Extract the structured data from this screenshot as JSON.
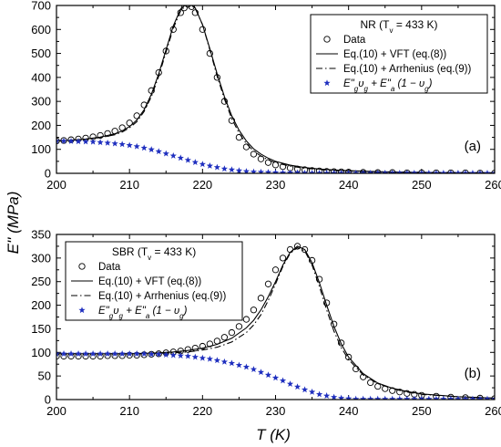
{
  "figure": {
    "xlabel": "T (K)",
    "ylabel": "E'' (MPa)"
  },
  "chart_data": [
    {
      "type": "line",
      "panel": "top",
      "tag": "(a)",
      "legend_title": "NR (T",
      "legend_title_sub": "v",
      "legend_title_rest": " = 433  K)",
      "legend_placement": "top-right",
      "xlim": [
        200,
        260
      ],
      "ylim": [
        0,
        700
      ],
      "xticks": [
        200,
        210,
        220,
        230,
        240,
        250,
        260
      ],
      "yticks": [
        0,
        100,
        200,
        300,
        400,
        500,
        600,
        700
      ],
      "series": [
        {
          "name": "Data",
          "style": "open-circles",
          "color": "#000000",
          "x": [
            200,
            201,
            202,
            203,
            204,
            205,
            206,
            207,
            208,
            209,
            210,
            211,
            212,
            213,
            214,
            215,
            216,
            217,
            217.5,
            218,
            218.5,
            219,
            220,
            221,
            222,
            223,
            224,
            225,
            226,
            227,
            228,
            229,
            230,
            231,
            232,
            233,
            234,
            235,
            236,
            237,
            238,
            239,
            240,
            242,
            244,
            246,
            248,
            250,
            252,
            254,
            256,
            258,
            260
          ],
          "y": [
            135,
            137,
            140,
            143,
            147,
            152,
            158,
            166,
            176,
            190,
            210,
            240,
            285,
            345,
            420,
            510,
            600,
            670,
            690,
            705,
            695,
            670,
            600,
            500,
            400,
            300,
            220,
            150,
            110,
            80,
            60,
            45,
            35,
            28,
            22,
            18,
            15,
            12,
            10,
            8,
            7,
            6,
            5,
            4,
            3,
            3,
            2,
            2,
            2,
            2,
            2,
            1,
            1
          ]
        },
        {
          "name": "Eq.(10) + VFT (eq.(8))",
          "style": "solid",
          "color": "#000000",
          "x": [
            200,
            202,
            204,
            206,
            208,
            209,
            210,
            211,
            212,
            213,
            214,
            215,
            216,
            217,
            218,
            219,
            220,
            221,
            222,
            223,
            224,
            225,
            226,
            227,
            228,
            229,
            230,
            232,
            234,
            236,
            238,
            240,
            245,
            250,
            255,
            260
          ],
          "y": [
            135,
            138,
            143,
            151,
            165,
            177,
            195,
            222,
            265,
            330,
            415,
            515,
            615,
            685,
            712,
            690,
            620,
            520,
            415,
            320,
            240,
            180,
            135,
            102,
            80,
            63,
            50,
            34,
            24,
            18,
            14,
            11,
            6,
            4,
            3,
            2
          ]
        },
        {
          "name": "Eq.(10) + Arrhenius (eq.(9))",
          "style": "dash-dot",
          "color": "#000000",
          "x": [
            200,
            202,
            204,
            206,
            208,
            209,
            210,
            211,
            212,
            213,
            214,
            215,
            216,
            217,
            218,
            219,
            220,
            221,
            222,
            223,
            224,
            225,
            226,
            227,
            228,
            229,
            230,
            232,
            234,
            236,
            238,
            240,
            245,
            250,
            255,
            260
          ],
          "y": [
            135,
            138,
            142,
            149,
            161,
            172,
            190,
            215,
            258,
            320,
            405,
            505,
            605,
            678,
            708,
            688,
            620,
            515,
            405,
            310,
            228,
            168,
            124,
            93,
            72,
            56,
            44,
            30,
            21,
            16,
            12,
            10,
            6,
            4,
            3,
            2
          ]
        },
        {
          "name": "E\"gυg + E\"a (1 − υg)",
          "style": "blue-stars",
          "color": "#1f2fbf",
          "x": [
            200,
            201,
            202,
            203,
            204,
            205,
            206,
            207,
            208,
            209,
            210,
            211,
            212,
            213,
            214,
            215,
            216,
            217,
            218,
            219,
            220,
            221,
            222,
            223,
            224,
            225,
            226,
            227,
            228,
            229,
            230,
            231,
            232,
            233,
            234,
            235,
            236,
            237,
            238,
            239,
            240,
            241,
            242,
            243,
            244,
            245,
            246,
            247,
            248,
            249,
            250,
            251,
            252,
            253,
            254,
            255,
            256,
            257,
            258,
            259,
            260
          ],
          "y": [
            135,
            135,
            134,
            133,
            132,
            131,
            129,
            127,
            124,
            121,
            117,
            112,
            106,
            99,
            91,
            82,
            73,
            64,
            55,
            46,
            38,
            31,
            25,
            19,
            15,
            11,
            8,
            6,
            5,
            4,
            3,
            2,
            2,
            2,
            1,
            1,
            1,
            1,
            1,
            1,
            1,
            1,
            1,
            1,
            1,
            1,
            1,
            1,
            1,
            1,
            1,
            1,
            1,
            1,
            1,
            1,
            1,
            1,
            1,
            1,
            1
          ]
        }
      ]
    },
    {
      "type": "line",
      "panel": "bottom",
      "tag": "(b)",
      "legend_title": "SBR  (T",
      "legend_title_sub": "v",
      "legend_title_rest": " = 433 K)",
      "legend_placement": "top-left",
      "xlim": [
        200,
        260
      ],
      "ylim": [
        0,
        350
      ],
      "xticks": [
        200,
        210,
        220,
        230,
        240,
        250,
        260
      ],
      "yticks": [
        0,
        50,
        100,
        150,
        200,
        250,
        300,
        350
      ],
      "series": [
        {
          "name": "Data",
          "style": "open-circles",
          "color": "#000000",
          "x": [
            200,
            201,
            202,
            203,
            204,
            205,
            206,
            207,
            208,
            209,
            210,
            211,
            212,
            213,
            214,
            215,
            216,
            217,
            218,
            219,
            220,
            221,
            222,
            223,
            224,
            225,
            226,
            227,
            228,
            229,
            230,
            231,
            232,
            233,
            234,
            235,
            236,
            237,
            238,
            239,
            240,
            241,
            242,
            243,
            244,
            245,
            246,
            247,
            248,
            249,
            250,
            252,
            254,
            256,
            258,
            260
          ],
          "y": [
            92,
            92,
            92,
            92,
            92,
            92,
            92,
            93,
            93,
            93,
            94,
            94,
            95,
            96,
            97,
            99,
            101,
            103,
            106,
            109,
            113,
            118,
            124,
            132,
            142,
            155,
            170,
            190,
            215,
            245,
            275,
            300,
            318,
            325,
            318,
            295,
            255,
            205,
            160,
            120,
            90,
            65,
            48,
            36,
            28,
            23,
            19,
            16,
            13,
            11,
            9,
            7,
            5,
            4,
            3,
            2
          ]
        },
        {
          "name": "Eq.(10) + VFT (eq.(8))",
          "style": "solid",
          "color": "#000000",
          "x": [
            200,
            205,
            210,
            212,
            214,
            216,
            218,
            220,
            222,
            224,
            226,
            227,
            228,
            229,
            230,
            231,
            232,
            233,
            234,
            235,
            236,
            237,
            238,
            239,
            240,
            242,
            244,
            246,
            248,
            250,
            255,
            260
          ],
          "y": [
            97,
            97,
            97,
            98,
            99,
            101,
            104,
            109,
            117,
            130,
            152,
            168,
            190,
            218,
            250,
            285,
            312,
            325,
            318,
            290,
            248,
            200,
            155,
            118,
            90,
            55,
            35,
            24,
            17,
            12,
            6,
            3
          ]
        },
        {
          "name": "Eq.(10) + Arrhenius (eq.(9))",
          "style": "dash-dot",
          "color": "#000000",
          "x": [
            200,
            205,
            210,
            212,
            214,
            216,
            218,
            220,
            222,
            224,
            226,
            227,
            228,
            229,
            230,
            231,
            232,
            233,
            234,
            235,
            236,
            237,
            238,
            239,
            240,
            242,
            244,
            246,
            248,
            250,
            255,
            260
          ],
          "y": [
            97,
            97,
            97,
            97,
            98,
            99,
            101,
            105,
            111,
            122,
            142,
            158,
            180,
            210,
            245,
            282,
            310,
            322,
            315,
            285,
            240,
            190,
            145,
            110,
            85,
            52,
            34,
            23,
            16,
            11,
            6,
            3
          ]
        },
        {
          "name": "E\"gυg + E\"a (1 − υg)",
          "style": "blue-stars",
          "color": "#1f2fbf",
          "x": [
            200,
            201,
            202,
            203,
            204,
            205,
            206,
            207,
            208,
            209,
            210,
            211,
            212,
            213,
            214,
            215,
            216,
            217,
            218,
            219,
            220,
            221,
            222,
            223,
            224,
            225,
            226,
            227,
            228,
            229,
            230,
            231,
            232,
            233,
            234,
            235,
            236,
            237,
            238,
            239,
            240,
            241,
            242,
            243,
            244,
            245,
            246,
            247,
            248,
            249,
            250,
            251,
            252,
            253,
            254,
            255,
            256,
            257,
            258,
            259,
            260
          ],
          "y": [
            97,
            97,
            97,
            97,
            97,
            97,
            97,
            97,
            97,
            97,
            97,
            97,
            97,
            96,
            96,
            95,
            94,
            93,
            92,
            90,
            88,
            86,
            83,
            80,
            77,
            73,
            69,
            64,
            58,
            52,
            46,
            40,
            33,
            27,
            21,
            16,
            11,
            8,
            5,
            3,
            2,
            1,
            1,
            1,
            1,
            1,
            1,
            1,
            1,
            1,
            1,
            1,
            1,
            1,
            1,
            1,
            1,
            1,
            1,
            1,
            1
          ]
        }
      ]
    }
  ]
}
